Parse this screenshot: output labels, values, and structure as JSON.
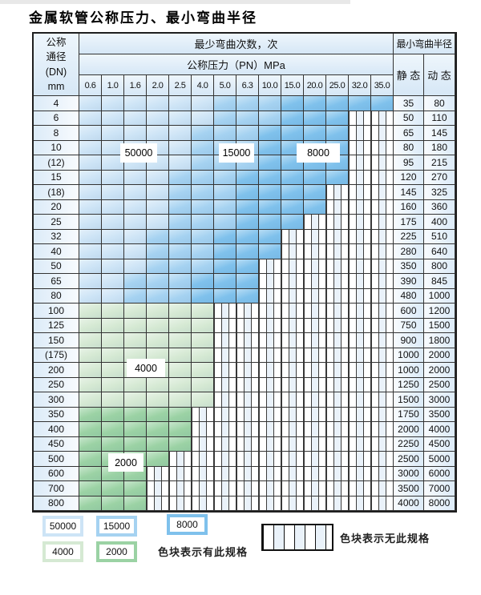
{
  "title": "金属软管公称压力、最小弯曲半径",
  "header": {
    "dn_lines": [
      "公称",
      "通径",
      "(DN)",
      "mm"
    ],
    "cycles": "最少弯曲次数，次",
    "pressure": "公称压力（PN）MPa",
    "radius": "最小弯曲半径",
    "static": "静 态",
    "dynamic": "动 态",
    "pressures": [
      "0.6",
      "1.0",
      "1.6",
      "2.0",
      "2.5",
      "4.0",
      "5.0",
      "6.3",
      "10.0",
      "15.0",
      "20.0",
      "25.0",
      "32.0",
      "35.0"
    ]
  },
  "zone_labels": {
    "b1": "50000",
    "b2": "15000",
    "b3": "8000",
    "g1": "4000",
    "g2": "2000"
  },
  "legend": {
    "has_spec_note": "色块表示有此规格",
    "no_spec_note": "色块表示无此规格"
  },
  "colors": {
    "b1": "#cde4f6",
    "b2": "#a5d2f1",
    "b3": "#7fc1ec",
    "g1": "#d5e9d3",
    "g2": "#9bd2a4"
  },
  "rows": [
    {
      "dn": "4",
      "spec": "11111122233333",
      "st": "35",
      "dy": "80"
    },
    {
      "dn": "6",
      "spec": "11111122233300",
      "st": "50",
      "dy": "110"
    },
    {
      "dn": "8",
      "spec": "11111222333300",
      "st": "65",
      "dy": "145"
    },
    {
      "dn": "10",
      "spec": "11111222333300",
      "st": "80",
      "dy": "180"
    },
    {
      "dn": "(12)",
      "spec": "11111222333300",
      "st": "95",
      "dy": "215"
    },
    {
      "dn": "15",
      "spec": "11112223333300",
      "st": "120",
      "dy": "270"
    },
    {
      "dn": "(18)",
      "spec": "11112223333000",
      "st": "145",
      "dy": "325"
    },
    {
      "dn": "20",
      "spec": "11112223333000",
      "st": "160",
      "dy": "360"
    },
    {
      "dn": "25",
      "spec": "11112223330000",
      "st": "175",
      "dy": "400"
    },
    {
      "dn": "32",
      "spec": "11122233300000",
      "st": "225",
      "dy": "510"
    },
    {
      "dn": "40",
      "spec": "11122233300000",
      "st": "280",
      "dy": "640"
    },
    {
      "dn": "50",
      "spec": "11122233000000",
      "st": "350",
      "dy": "800"
    },
    {
      "dn": "65",
      "spec": "11222333000000",
      "st": "390",
      "dy": "845"
    },
    {
      "dn": "80",
      "spec": "11222333000000",
      "st": "480",
      "dy": "1000"
    },
    {
      "dn": "100",
      "spec": "44444400000000",
      "st": "600",
      "dy": "1200"
    },
    {
      "dn": "125",
      "spec": "44444400000000",
      "st": "750",
      "dy": "1500"
    },
    {
      "dn": "150",
      "spec": "44444400000000",
      "st": "900",
      "dy": "1800"
    },
    {
      "dn": "(175)",
      "spec": "44444400000000",
      "st": "1000",
      "dy": "2000"
    },
    {
      "dn": "200",
      "spec": "44444400000000",
      "st": "1000",
      "dy": "2000"
    },
    {
      "dn": "250",
      "spec": "44444400000000",
      "st": "1250",
      "dy": "2500"
    },
    {
      "dn": "300",
      "spec": "44444400000000",
      "st": "1500",
      "dy": "3000"
    },
    {
      "dn": "350",
      "spec": "55555000000000",
      "st": "1750",
      "dy": "3500"
    },
    {
      "dn": "400",
      "spec": "55555000000000",
      "st": "2000",
      "dy": "4000"
    },
    {
      "dn": "450",
      "spec": "55555000000000",
      "st": "2250",
      "dy": "4500"
    },
    {
      "dn": "500",
      "spec": "55550000000000",
      "st": "2500",
      "dy": "5000"
    },
    {
      "dn": "600",
      "spec": "55500000000000",
      "st": "3000",
      "dy": "6000"
    },
    {
      "dn": "700",
      "spec": "55500000000000",
      "st": "3500",
      "dy": "7000"
    },
    {
      "dn": "800",
      "spec": "55500000000000",
      "st": "4000",
      "dy": "8000"
    }
  ]
}
